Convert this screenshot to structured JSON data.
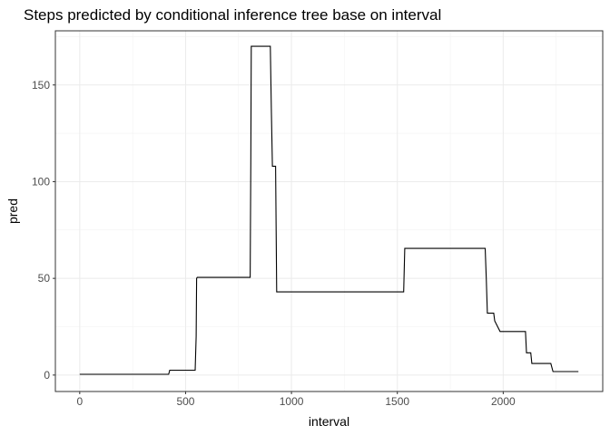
{
  "chart_data": {
    "type": "line",
    "title": "Steps predicted by conditional inference tree base on interval",
    "xlabel": "interval",
    "ylabel": "pred",
    "xlim": [
      -115,
      2470
    ],
    "ylim": [
      -8.5,
      178
    ],
    "xticks": [
      0,
      500,
      1000,
      1500,
      2000
    ],
    "yticks": [
      0,
      50,
      100,
      150
    ],
    "grid": true,
    "series": [
      {
        "name": "",
        "x": [
          0,
          420,
          425,
          545,
          550,
          552,
          555,
          805,
          808,
          810,
          815,
          900,
          905,
          910,
          925,
          930,
          1530,
          1535,
          1915,
          1920,
          1925,
          1955,
          1960,
          1985,
          1990,
          2105,
          2110,
          2130,
          2135,
          2220,
          2225,
          2235,
          2240,
          2355
        ],
        "y": [
          0.4,
          0.4,
          2.5,
          2.5,
          20,
          50,
          50.5,
          50.5,
          110,
          170,
          170,
          170,
          138,
          108,
          108,
          43,
          43,
          65.5,
          65.5,
          50,
          32,
          32,
          28,
          22.5,
          22.5,
          22.5,
          11.5,
          11.5,
          6,
          6,
          6,
          1.8,
          1.8,
          1.8
        ]
      }
    ]
  }
}
